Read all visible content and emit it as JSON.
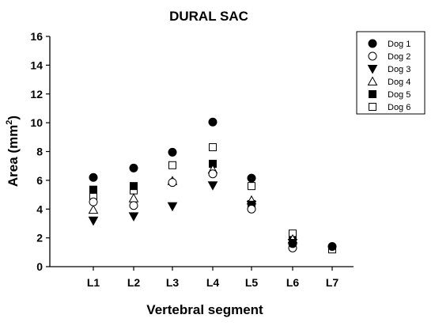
{
  "chart_data": {
    "type": "scatter",
    "title": "DURAL SAC",
    "xlabel": "Vertebral segment",
    "ylabel_main": "Area (mm",
    "ylabel_sup": "2",
    "ylabel_close": ")",
    "categories": [
      "L1",
      "L2",
      "L3",
      "L4",
      "L5",
      "L6",
      "L7"
    ],
    "ylim": [
      0,
      16
    ],
    "yticks": [
      "0",
      "2",
      "4",
      "6",
      "8",
      "10",
      "12",
      "14",
      "16"
    ],
    "grid": false,
    "legend_position": "top-right",
    "series": [
      {
        "name": "Dog 1",
        "marker": "filled-circle",
        "values": [
          6.2,
          6.85,
          7.95,
          10.05,
          6.15,
          1.6,
          1.4
        ]
      },
      {
        "name": "Dog 2",
        "marker": "open-circle",
        "values": [
          4.5,
          4.25,
          5.85,
          6.45,
          4.0,
          1.3,
          null
        ]
      },
      {
        "name": "Dog 3",
        "marker": "filled-triangle-down",
        "values": [
          3.2,
          3.5,
          4.2,
          5.65,
          4.3,
          1.65,
          null
        ]
      },
      {
        "name": "Dog 4",
        "marker": "open-triangle-up",
        "values": [
          3.95,
          4.75,
          5.95,
          6.75,
          4.6,
          1.9,
          null
        ]
      },
      {
        "name": "Dog 5",
        "marker": "filled-square",
        "values": [
          5.35,
          5.6,
          null,
          7.15,
          4.35,
          1.85,
          null
        ]
      },
      {
        "name": "Dog 6",
        "marker": "open-square",
        "values": [
          4.85,
          5.3,
          7.05,
          8.3,
          5.6,
          2.3,
          1.2
        ]
      }
    ]
  }
}
